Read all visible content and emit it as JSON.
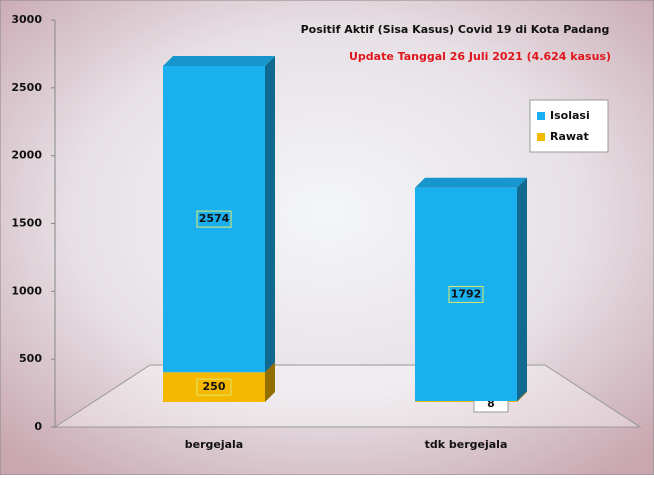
{
  "chart_data": {
    "type": "bar",
    "stacked": true,
    "three_d": true,
    "title": "Positif Aktif  (Sisa Kasus) Covid 19 di Kota Padang",
    "subtitle": "Update Tanggal 26 Juli 2021 (4.624 kasus)",
    "categories": [
      "bergejala",
      "tdk bergejala"
    ],
    "series": [
      {
        "name": "Rawat",
        "color": "#f5b800",
        "values": [
          250,
          8
        ]
      },
      {
        "name": "Isolasi",
        "color": "#1ab0f0",
        "values": [
          2574,
          1792
        ]
      }
    ],
    "ylim": [
      0,
      3000
    ],
    "yticks": [
      0,
      500,
      1000,
      1500,
      2000,
      2500,
      3000
    ],
    "legend": "right"
  }
}
